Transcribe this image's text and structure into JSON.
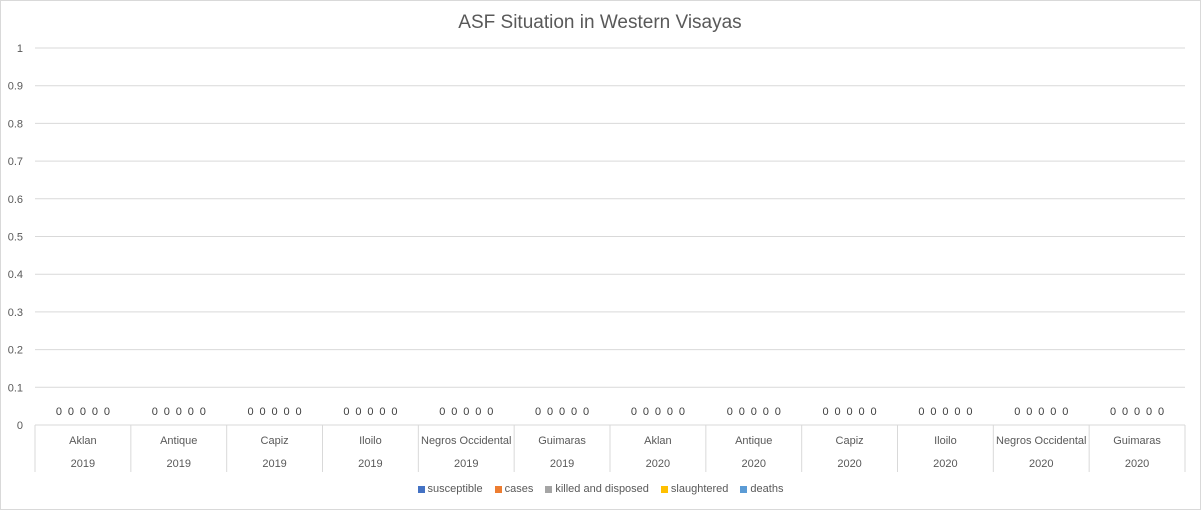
{
  "chart_data": {
    "type": "bar",
    "title": "ASF Situation in Western Visayas",
    "xlabel": "",
    "ylabel": "",
    "ylim": [
      0,
      1
    ],
    "yticks": [
      "0",
      "0.1",
      "0.2",
      "0.3",
      "0.4",
      "0.5",
      "0.6",
      "0.7",
      "0.8",
      "0.9",
      "1"
    ],
    "grid": true,
    "legend_position": "bottom",
    "categories": [
      {
        "province": "Aklan",
        "year": "2019"
      },
      {
        "province": "Antique",
        "year": "2019"
      },
      {
        "province": "Capiz",
        "year": "2019"
      },
      {
        "province": "Iloilo",
        "year": "2019"
      },
      {
        "province": "Negros Occidental",
        "year": "2019"
      },
      {
        "province": "Guimaras",
        "year": "2019"
      },
      {
        "province": "Aklan",
        "year": "2020"
      },
      {
        "province": "Antique",
        "year": "2020"
      },
      {
        "province": "Capiz",
        "year": "2020"
      },
      {
        "province": "Iloilo",
        "year": "2020"
      },
      {
        "province": "Negros Occidental",
        "year": "2020"
      },
      {
        "province": "Guimaras",
        "year": "2020"
      }
    ],
    "series": [
      {
        "name": "susceptible",
        "color": "#4472c4",
        "values": [
          0,
          0,
          0,
          0,
          0,
          0,
          0,
          0,
          0,
          0,
          0,
          0
        ]
      },
      {
        "name": "cases",
        "color": "#ed7d31",
        "values": [
          0,
          0,
          0,
          0,
          0,
          0,
          0,
          0,
          0,
          0,
          0,
          0
        ]
      },
      {
        "name": "killed and disposed",
        "color": "#a5a5a5",
        "values": [
          0,
          0,
          0,
          0,
          0,
          0,
          0,
          0,
          0,
          0,
          0,
          0
        ]
      },
      {
        "name": "slaughtered",
        "color": "#ffc000",
        "values": [
          0,
          0,
          0,
          0,
          0,
          0,
          0,
          0,
          0,
          0,
          0,
          0
        ]
      },
      {
        "name": "deaths",
        "color": "#5b9bd5",
        "values": [
          0,
          0,
          0,
          0,
          0,
          0,
          0,
          0,
          0,
          0,
          0,
          0
        ]
      }
    ]
  }
}
